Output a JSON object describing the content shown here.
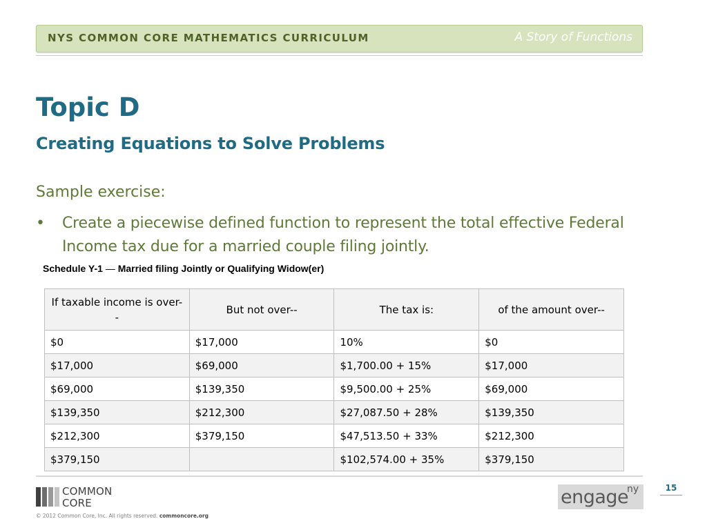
{
  "header": {
    "curriculum": "NYS COMMON CORE MATHEMATICS CURRICULUM",
    "module": "A Story of Functions"
  },
  "topic": {
    "title": "Topic D",
    "subtitle": "Creating Equations to Solve Problems"
  },
  "content": {
    "sample_label": "Sample exercise:",
    "bullet_text": "Create a piecewise defined function to represent the total effective Federal Income tax due for a married couple filing jointly."
  },
  "schedule": {
    "caption_prefix": "Schedule Y-1",
    "caption_dash": "—",
    "caption_rest": "Married filing Jointly or Qualifying Widow(er)",
    "columns": [
      "If taxable income is over--",
      "But not over--",
      "The tax is:",
      "of the amount over--"
    ],
    "rows": [
      [
        "$0",
        "$17,000",
        "10%",
        "$0"
      ],
      [
        "$17,000",
        "$69,000",
        "$1,700.00 + 15%",
        "$17,000"
      ],
      [
        "$69,000",
        "$139,350",
        "$9,500.00 + 25%",
        "$69,000"
      ],
      [
        "$139,350",
        "$212,300",
        "$27,087.50 + 28%",
        "$139,350"
      ],
      [
        "$212,300",
        "$379,150",
        "$47,513.50 + 33%",
        "$212,300"
      ],
      [
        "$379,150",
        "",
        "$102,574.00 + 35%",
        "$379,150"
      ]
    ]
  },
  "footer": {
    "logo_line1": "COMMON",
    "logo_line2": "CORE",
    "copyright": "© 2012 Common Core, Inc. All rights reserved.",
    "site": "commoncore.org",
    "page_number": "15",
    "engage_text": "engage",
    "engage_sup": "ny"
  },
  "colors": {
    "header_bg": "#d6e3bc",
    "header_text": "#4f6228",
    "title_blue": "#1f6b85",
    "body_green": "#5e7a36"
  }
}
